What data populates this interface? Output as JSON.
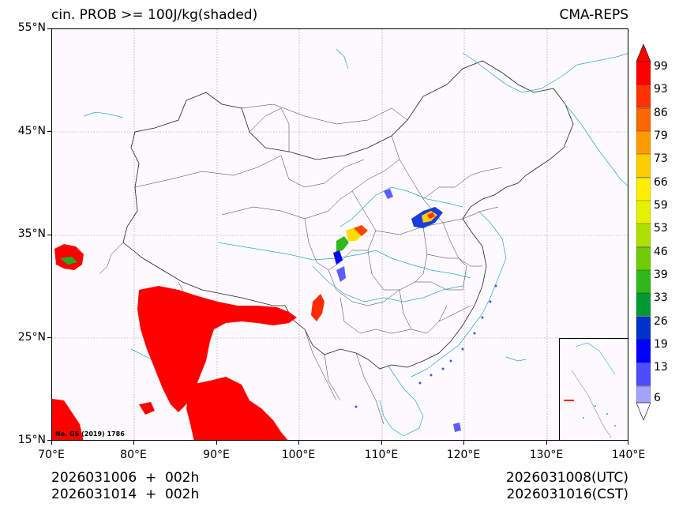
{
  "title": {
    "left": "cin. PROB >= 100J/kg(shaded)",
    "right": "CMA-REPS"
  },
  "axes": {
    "lat_labels": [
      "55°N",
      "45°N",
      "35°N",
      "25°N",
      "15°N"
    ],
    "lon_labels": [
      "70°E",
      "80°E",
      "90°E",
      "100°E",
      "110°E",
      "120°E",
      "130°E",
      "140°E"
    ]
  },
  "colorbar": {
    "labels": [
      "99",
      "93",
      "86",
      "79",
      "73",
      "66",
      "59",
      "53",
      "46",
      "39",
      "33",
      "26",
      "19",
      "13",
      "6"
    ],
    "colors": [
      "#ff0000",
      "#ff3300",
      "#ff6600",
      "#ff9900",
      "#ffcc00",
      "#ffee00",
      "#e6f000",
      "#b0e000",
      "#70cc00",
      "#2eb81a",
      "#009933",
      "#0033cc",
      "#0000ff",
      "#4d4dff",
      "#a3a3ff"
    ]
  },
  "map": {
    "inset_text": "No. GS (2019) 1786"
  },
  "footer": {
    "init_utc": "2026031006  +  002h",
    "init_cst": "2026031014  +  002h",
    "valid_utc": "2026031008(UTC)",
    "valid_cst": "2026031016(CST)"
  }
}
